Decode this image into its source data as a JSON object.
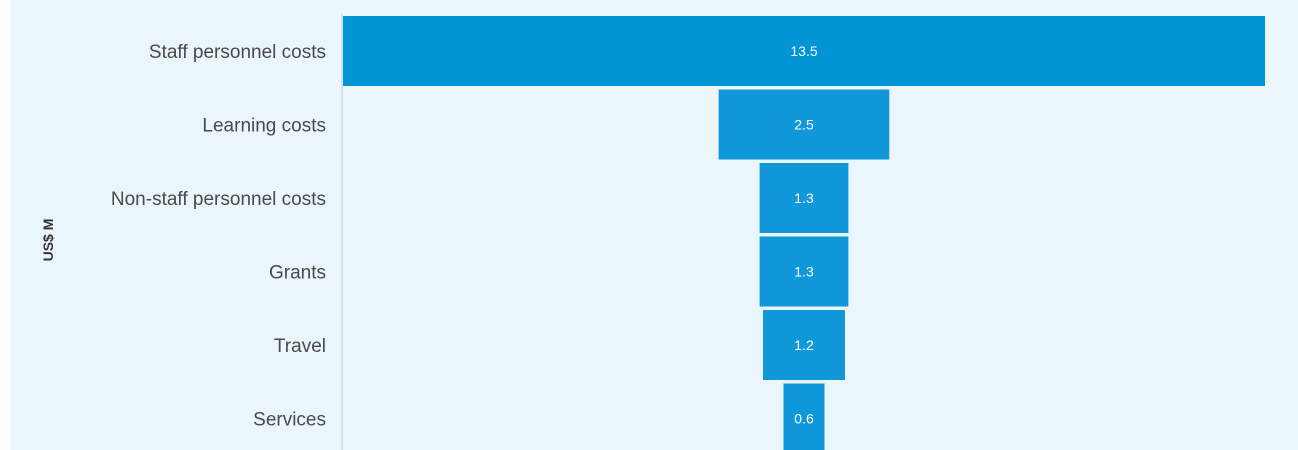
{
  "chart_data": {
    "type": "bar",
    "subtype": "funnel",
    "ylabel": "US$ M",
    "categories": [
      "Staff personnel costs",
      "Learning costs",
      "Non-staff personnel costs",
      "Grants",
      "Travel",
      "Services"
    ],
    "values": [
      13.5,
      2.5,
      1.3,
      1.3,
      1.2,
      0.6
    ],
    "value_labels": [
      "13.5",
      "2.5",
      "1.3",
      "1.3",
      "1.2",
      "0.6"
    ],
    "colors": {
      "bar": "#0295d6",
      "bar_alt": "#1198d8",
      "plot_background": "#ebf6fc",
      "axis_line": "#cfd8de"
    },
    "legend": "none",
    "grid": false
  }
}
